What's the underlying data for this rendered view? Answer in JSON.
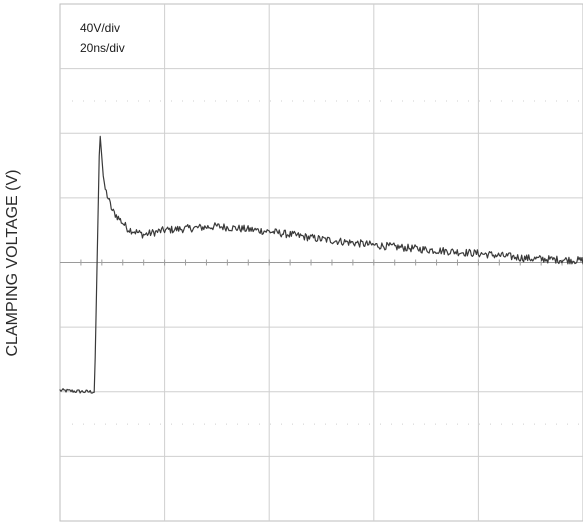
{
  "chart_data": {
    "type": "line",
    "ylabel": "CLAMPING VOLTAGE (V)",
    "scale_labels": {
      "vertical": "40V/div",
      "horizontal": "20ns/div"
    },
    "divisions": {
      "x": 5,
      "y": 8
    },
    "grid": true,
    "trace_color": "#3a3a3a",
    "grid_color": "#cfcfcf",
    "series": [
      {
        "values": [
          [
            0,
            -1.98
          ],
          [
            0.25,
            -2.0
          ],
          [
            0.33,
            -2.0
          ],
          [
            0.38,
            2.05
          ],
          [
            0.42,
            1.2
          ],
          [
            0.5,
            0.8
          ],
          [
            0.65,
            0.52
          ],
          [
            0.8,
            0.43
          ],
          [
            1.0,
            0.5
          ],
          [
            1.5,
            0.56
          ],
          [
            2.0,
            0.48
          ],
          [
            2.5,
            0.36
          ],
          [
            3.0,
            0.27
          ],
          [
            3.5,
            0.2
          ],
          [
            4.0,
            0.14
          ],
          [
            4.5,
            0.06
          ],
          [
            5.0,
            0.03
          ]
        ]
      }
    ]
  }
}
